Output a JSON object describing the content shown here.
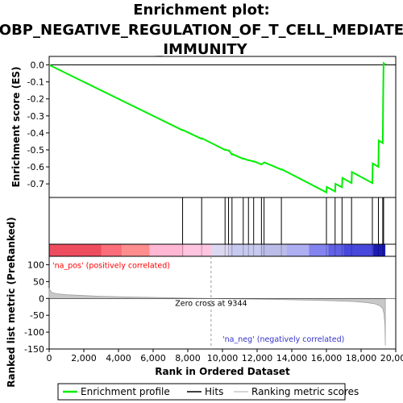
{
  "chart_data": {
    "type": "line",
    "title_lines": [
      "Enrichment plot:",
      "GOBP_NEGATIVE_REGULATION_OF_T_CELL_MEDIATED",
      "_IMMUNITY"
    ],
    "top_panel": {
      "ylabel": "Enrichment score (ES)",
      "ylim": [
        -0.78,
        0.05
      ],
      "yticks": [
        0.0,
        -0.1,
        -0.2,
        -0.3,
        -0.4,
        -0.5,
        -0.6,
        -0.7
      ],
      "ytick_labels": [
        "0.0",
        "-0.1",
        "-0.2",
        "-0.3",
        "-0.4",
        "-0.5",
        "-0.6",
        "-0.7"
      ],
      "series_name": "Enrichment profile",
      "color": "#00ee00",
      "es_profile": [
        [
          0,
          0.0
        ],
        [
          7700,
          -0.385
        ],
        [
          7720,
          -0.383
        ],
        [
          8800,
          -0.435
        ],
        [
          8820,
          -0.432
        ],
        [
          10150,
          -0.5
        ],
        [
          10170,
          -0.498
        ],
        [
          10350,
          -0.505
        ],
        [
          10370,
          -0.503
        ],
        [
          10550,
          -0.527
        ],
        [
          10570,
          -0.525
        ],
        [
          11200,
          -0.553
        ],
        [
          11220,
          -0.551
        ],
        [
          11500,
          -0.562
        ],
        [
          11520,
          -0.56
        ],
        [
          11800,
          -0.569
        ],
        [
          11820,
          -0.567
        ],
        [
          12250,
          -0.586
        ],
        [
          12270,
          -0.584
        ],
        [
          12400,
          -0.575
        ],
        [
          12420,
          -0.573
        ],
        [
          13400,
          -0.616
        ],
        [
          13420,
          -0.614
        ],
        [
          16000,
          -0.75
        ],
        [
          16020,
          -0.718
        ],
        [
          16500,
          -0.745
        ],
        [
          16520,
          -0.7
        ],
        [
          16900,
          -0.72
        ],
        [
          16920,
          -0.665
        ],
        [
          17450,
          -0.695
        ],
        [
          17470,
          -0.63
        ],
        [
          18650,
          -0.695
        ],
        [
          18670,
          -0.58
        ],
        [
          19000,
          -0.6
        ],
        [
          19020,
          -0.445
        ],
        [
          19250,
          -0.46
        ],
        [
          19270,
          -0.23
        ],
        [
          19300,
          0.01
        ],
        [
          19400,
          0.003
        ]
      ]
    },
    "hits": [
      7700,
      8800,
      10150,
      10350,
      10550,
      11200,
      11500,
      11800,
      12250,
      12400,
      13400,
      16000,
      16500,
      16900,
      17450,
      18650,
      19000,
      19250,
      19300
    ],
    "hits_label": "Hits",
    "bottom_panel": {
      "ylabel": "Ranked list metric (PreRanked)",
      "ylim": [
        -150,
        125
      ],
      "yticks": [
        100,
        50,
        0,
        -50,
        -100,
        -150
      ],
      "ytick_labels": [
        "100",
        "50",
        "0",
        "-50",
        "-100",
        "-150"
      ],
      "series_name": "Ranking metric scores",
      "metric_profile": [
        [
          0,
          30
        ],
        [
          60,
          24
        ],
        [
          150,
          18
        ],
        [
          400,
          14
        ],
        [
          1000,
          11
        ],
        [
          2000,
          8.5
        ],
        [
          3000,
          6.5
        ],
        [
          4500,
          4.5
        ],
        [
          6000,
          3
        ],
        [
          7500,
          1.5
        ],
        [
          9344,
          0
        ],
        [
          11000,
          -1.5
        ],
        [
          13000,
          -3
        ],
        [
          15000,
          -5
        ],
        [
          16500,
          -7
        ],
        [
          17500,
          -9
        ],
        [
          18300,
          -12
        ],
        [
          18800,
          -16
        ],
        [
          19100,
          -22
        ],
        [
          19250,
          -30
        ],
        [
          19320,
          -45
        ],
        [
          19370,
          -75
        ],
        [
          19400,
          -140
        ]
      ],
      "zero_cross_label": "Zero cross at 9344",
      "zero_cross": 9344,
      "pos_label": "'na_pos' (positively correlated)",
      "neg_label": "'na_neg' (negatively correlated)",
      "pos_color": "#ff0000",
      "neg_color": "#3333cc"
    },
    "xlabel": "Rank in Ordered Dataset",
    "xlim": [
      0,
      20000
    ],
    "xticks": [
      0,
      2000,
      4000,
      6000,
      8000,
      10000,
      12000,
      14000,
      16000,
      18000,
      20000
    ],
    "xtick_labels": [
      "0",
      "2,000",
      "4,000",
      "6,000",
      "8,000",
      "10,000",
      "12,000",
      "14,000",
      "16,000",
      "18,000",
      "20,000"
    ],
    "n_genes": 19400,
    "heat_segments": [
      {
        "end": 3000,
        "color": "#ee4d5f"
      },
      {
        "end": 4200,
        "color": "#fb6d7b"
      },
      {
        "end": 5800,
        "color": "#ff8d8d"
      },
      {
        "end": 7800,
        "color": "#ffb7d3"
      },
      {
        "end": 9344,
        "color": "#ffc4e0"
      },
      {
        "end": 10400,
        "color": "#dcd8f2"
      },
      {
        "end": 12200,
        "color": "#c7c9ef"
      },
      {
        "end": 13700,
        "color": "#bcbce8"
      },
      {
        "end": 15000,
        "color": "#aeaef2"
      },
      {
        "end": 16100,
        "color": "#8484f0"
      },
      {
        "end": 17000,
        "color": "#6161e6"
      },
      {
        "end": 18700,
        "color": "#4848dc"
      },
      {
        "end": 19400,
        "color": "#1b1bb6"
      }
    ],
    "legend": [
      "Enrichment profile",
      "Hits",
      "Ranking metric scores"
    ]
  }
}
